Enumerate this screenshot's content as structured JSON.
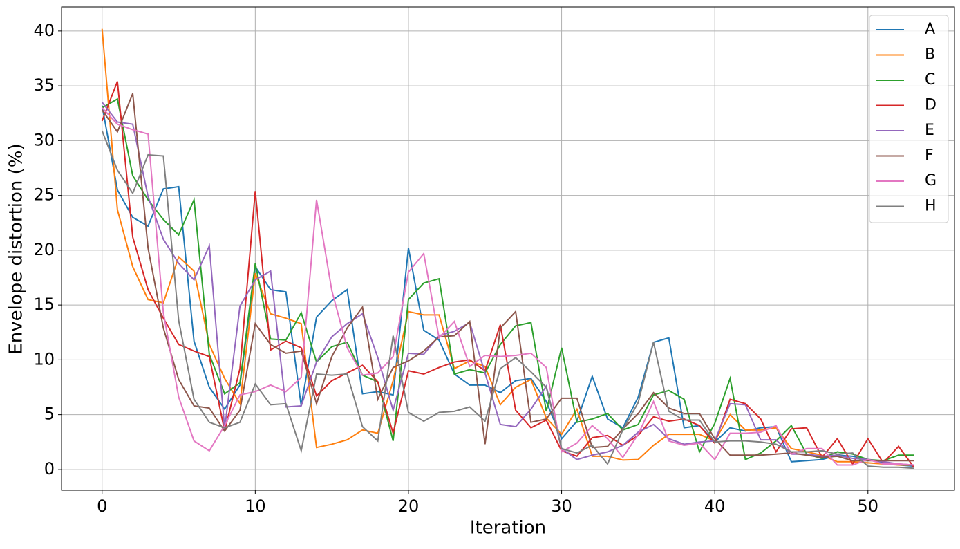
{
  "chart_data": {
    "type": "line",
    "x_label": "Iteration",
    "y_label": "Envelope distortion (%)",
    "x": [
      0,
      1,
      2,
      3,
      4,
      5,
      6,
      7,
      8,
      9,
      10,
      11,
      12,
      13,
      14,
      15,
      16,
      17,
      18,
      19,
      20,
      21,
      22,
      23,
      24,
      25,
      26,
      27,
      28,
      29,
      30,
      31,
      32,
      33,
      34,
      35,
      36,
      37,
      38,
      39,
      40,
      41,
      42,
      43,
      44,
      45,
      46,
      47,
      48,
      49,
      50,
      51,
      52,
      53
    ],
    "series": [
      {
        "name": "A",
        "color": "#1f77b4",
        "values": [
          33.2,
          25.5,
          23,
          22.2,
          25.6,
          25.8,
          11.7,
          7.5,
          5.5,
          7.7,
          18.5,
          16.4,
          16.2,
          5.8,
          13.9,
          15.4,
          16.4,
          6.9,
          7.1,
          6.8,
          20.2,
          12.7,
          11.8,
          8.7,
          7.7,
          7.7,
          7,
          8.1,
          8.3,
          6.2,
          2.8,
          4.4,
          8.5,
          4.6,
          3.8,
          6.6,
          11.6,
          12,
          3.8,
          4,
          2.5,
          3.8,
          3.5,
          3.8,
          3.9,
          0.7,
          0.8,
          0.9,
          1.3,
          1.2,
          0.9,
          0.6,
          0.4,
          0.3
        ]
      },
      {
        "name": "B",
        "color": "#ff7f0e",
        "values": [
          40.2,
          23.7,
          18.5,
          15.5,
          15.2,
          19.4,
          18.1,
          11.4,
          8.3,
          6,
          17.9,
          14.2,
          13.8,
          13.3,
          2,
          2.3,
          2.7,
          3.6,
          3.3,
          8.1,
          14.4,
          14.1,
          14.1,
          9.2,
          9.9,
          9.4,
          5.9,
          7.5,
          8.2,
          4.7,
          3.2,
          5.5,
          1.2,
          1.2,
          0.85,
          0.9,
          2.2,
          3.2,
          3.2,
          3.2,
          2.6,
          5,
          3.6,
          3.6,
          3.8,
          1.9,
          1.6,
          1.3,
          0.7,
          0.7,
          0.6,
          0.5,
          0.4,
          0.4
        ]
      },
      {
        "name": "C",
        "color": "#2ca02c",
        "values": [
          33,
          33.8,
          26.8,
          24.6,
          22.8,
          21.4,
          24.6,
          10.5,
          6.9,
          7.9,
          18.8,
          11.9,
          11.8,
          14.3,
          9.8,
          11.2,
          11.6,
          8.6,
          8,
          2.6,
          15.5,
          17,
          17.4,
          8.7,
          9.1,
          8.8,
          11.4,
          13.1,
          13.4,
          5.3,
          11.1,
          4.3,
          4.6,
          5.1,
          3.6,
          4.1,
          6.8,
          7.2,
          6.4,
          1.6,
          4.2,
          8.3,
          0.9,
          1.5,
          2.6,
          4,
          1.4,
          1,
          1.6,
          1.4,
          0.9,
          0.8,
          1.3,
          1.3
        ]
      },
      {
        "name": "D",
        "color": "#d62728",
        "values": [
          31.8,
          35.4,
          21.2,
          16.4,
          13.8,
          11.4,
          10.8,
          10.3,
          3.5,
          9.2,
          25.4,
          10.9,
          11.7,
          11.1,
          6.7,
          8.1,
          8.8,
          9.5,
          8,
          3.3,
          9,
          8.7,
          9.3,
          9.8,
          10,
          9,
          13.2,
          5.4,
          3.8,
          4.5,
          1.7,
          1.2,
          2.9,
          3.1,
          2.2,
          3.1,
          4.8,
          4.4,
          4.6,
          4,
          2.4,
          6.4,
          6,
          4.6,
          1.6,
          3.7,
          3.8,
          1.1,
          2.8,
          0.5,
          2.8,
          0.6,
          2.1,
          0.2
        ]
      },
      {
        "name": "E",
        "color": "#9467bd",
        "values": [
          33.5,
          31.7,
          31.5,
          24.9,
          21,
          18.8,
          17.3,
          20.4,
          3.7,
          14.9,
          17.3,
          18.1,
          5.7,
          5.8,
          9.8,
          12.1,
          13.3,
          14.2,
          10.2,
          5.4,
          10.6,
          10.5,
          12.2,
          12.6,
          13.4,
          8.8,
          4.1,
          3.9,
          5.5,
          7.6,
          1.9,
          0.9,
          1.3,
          1.6,
          2.2,
          3.4,
          4.1,
          2.8,
          2.3,
          2.5,
          2.6,
          6,
          5.9,
          2.7,
          2.7,
          1.4,
          1.4,
          1.2,
          1.3,
          1,
          0.9,
          0.7,
          0.5,
          0.4
        ]
      },
      {
        "name": "F",
        "color": "#8c564b",
        "values": [
          32.8,
          30.8,
          34.3,
          20.2,
          12.9,
          8.2,
          5.8,
          5.6,
          3.5,
          5.4,
          13.3,
          11.4,
          10.6,
          10.8,
          6,
          10.3,
          12.9,
          14.8,
          6.4,
          9.3,
          9.9,
          10.8,
          12.1,
          12.2,
          13.5,
          2.3,
          12.9,
          14.4,
          4.3,
          4.6,
          6.5,
          6.5,
          2,
          2.1,
          3.7,
          5.1,
          7,
          5.6,
          5.1,
          5.1,
          2.8,
          1.3,
          1.3,
          1.3,
          1.4,
          1.5,
          1.3,
          1.1,
          1.2,
          0.8,
          0.8,
          0.8,
          0.8,
          0.8
        ]
      },
      {
        "name": "G",
        "color": "#e377c2",
        "values": [
          33,
          31.5,
          31,
          30.6,
          14.3,
          6.6,
          2.6,
          1.7,
          4,
          6.8,
          7.1,
          7.7,
          7.1,
          8.4,
          24.6,
          16.3,
          11.1,
          8.6,
          8.8,
          10.3,
          18,
          19.7,
          12,
          13.5,
          9.4,
          10.4,
          10.3,
          10.4,
          10.6,
          9.3,
          1.6,
          2.4,
          4,
          2.8,
          1.1,
          3.2,
          6.2,
          2.6,
          2.2,
          2.4,
          0.9,
          3.3,
          3.3,
          3.4,
          4,
          1.4,
          1.9,
          1.9,
          0.4,
          0.4,
          0.9,
          0.5,
          0.5,
          0.4
        ]
      },
      {
        "name": "H",
        "color": "#7f7f7f",
        "values": [
          30.9,
          27.3,
          25.2,
          28.7,
          28.6,
          13.6,
          6.4,
          4.3,
          3.8,
          4.3,
          7.8,
          5.9,
          6,
          1.7,
          8.7,
          8.6,
          8.7,
          3.9,
          2.6,
          12.2,
          5.2,
          4.4,
          5.2,
          5.3,
          5.7,
          4.4,
          9.2,
          10.2,
          8.9,
          7.5,
          1.9,
          1.5,
          2.2,
          0.5,
          3.6,
          6.1,
          11.6,
          5.3,
          4.5,
          4.5,
          2.5,
          2.6,
          2.6,
          2.5,
          2.3,
          1.6,
          1.6,
          1.7,
          1.4,
          1.5,
          0.3,
          0.2,
          0.2,
          0.1
        ]
      }
    ],
    "xlim": [
      -2.65,
      55.65
    ],
    "ylim": [
      -1.9,
      42.2
    ],
    "xticks": [
      0,
      10,
      20,
      30,
      40,
      50
    ],
    "yticks": [
      0,
      5,
      10,
      15,
      20,
      25,
      30,
      35,
      40
    ],
    "grid": true,
    "legend": "upper right"
  }
}
